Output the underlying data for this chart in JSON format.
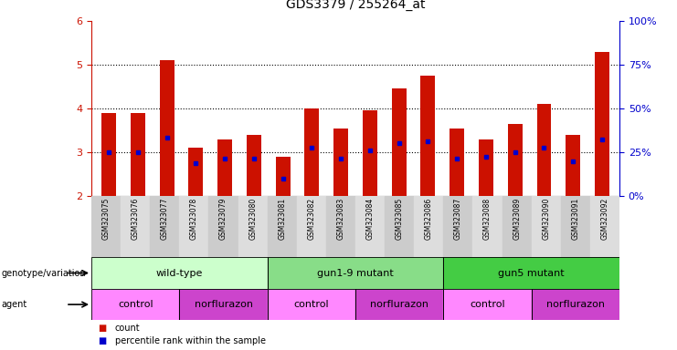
{
  "title": "GDS3379 / 255264_at",
  "samples": [
    "GSM323075",
    "GSM323076",
    "GSM323077",
    "GSM323078",
    "GSM323079",
    "GSM323080",
    "GSM323081",
    "GSM323082",
    "GSM323083",
    "GSM323084",
    "GSM323085",
    "GSM323086",
    "GSM323087",
    "GSM323088",
    "GSM323089",
    "GSM323090",
    "GSM323091",
    "GSM323092"
  ],
  "bar_heights": [
    3.9,
    3.9,
    5.1,
    3.1,
    3.3,
    3.4,
    2.9,
    4.0,
    3.55,
    3.95,
    4.45,
    4.75,
    3.55,
    3.3,
    3.65,
    4.1,
    3.4,
    5.3
  ],
  "blue_dot_y": [
    3.0,
    3.0,
    3.33,
    2.75,
    2.85,
    2.85,
    2.4,
    3.1,
    2.85,
    3.05,
    3.2,
    3.25,
    2.85,
    2.9,
    3.0,
    3.1,
    2.8,
    3.3
  ],
  "bar_color": "#cc1100",
  "dot_color": "#0000cc",
  "ylim_left": [
    2,
    6
  ],
  "ylim_right": [
    0,
    100
  ],
  "yticks_left": [
    2,
    3,
    4,
    5,
    6
  ],
  "ytick_labels_right": [
    "0%",
    "25%",
    "50%",
    "75%",
    "100%"
  ],
  "genotype_groups": [
    {
      "label": "wild-type",
      "start": 0,
      "end": 6,
      "color": "#ccffcc"
    },
    {
      "label": "gun1-9 mutant",
      "start": 6,
      "end": 12,
      "color": "#88dd88"
    },
    {
      "label": "gun5 mutant",
      "start": 12,
      "end": 18,
      "color": "#44cc44"
    }
  ],
  "agent_groups": [
    {
      "label": "control",
      "start": 0,
      "end": 3,
      "color": "#ff88ff"
    },
    {
      "label": "norflurazon",
      "start": 3,
      "end": 6,
      "color": "#cc44cc"
    },
    {
      "label": "control",
      "start": 6,
      "end": 9,
      "color": "#ff88ff"
    },
    {
      "label": "norflurazon",
      "start": 9,
      "end": 12,
      "color": "#cc44cc"
    },
    {
      "label": "control",
      "start": 12,
      "end": 15,
      "color": "#ff88ff"
    },
    {
      "label": "norflurazon",
      "start": 15,
      "end": 18,
      "color": "#cc44cc"
    }
  ],
  "legend_count_color": "#cc1100",
  "legend_dot_color": "#0000cc",
  "bg_color": "#ffffff",
  "bar_width": 0.5,
  "col_bg_even": "#cccccc",
  "col_bg_odd": "#dddddd"
}
